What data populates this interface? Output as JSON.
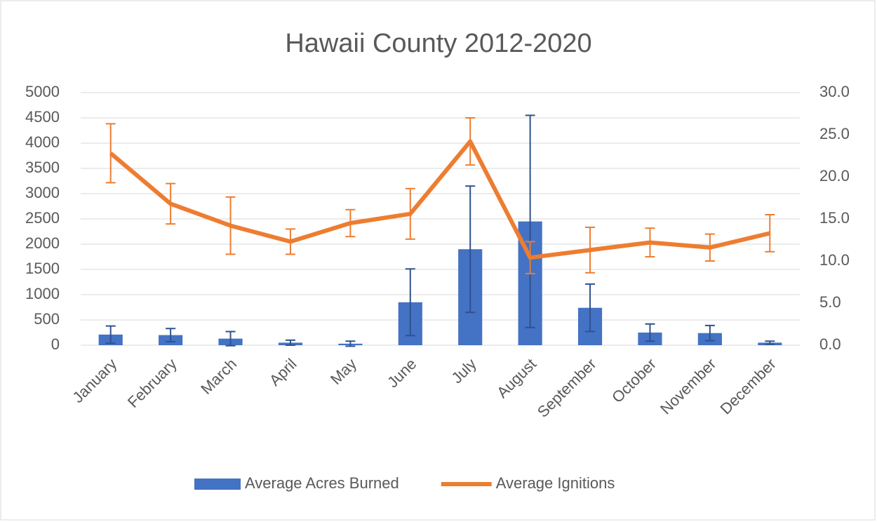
{
  "chart_data": {
    "type": "bar-line",
    "title": "Hawaii County 2012-2020",
    "categories": [
      "January",
      "February",
      "March",
      "April",
      "May",
      "June",
      "July",
      "August",
      "September",
      "October",
      "November",
      "December"
    ],
    "series": [
      {
        "name": "Average Acres Burned",
        "type": "bar",
        "color": "#4472c4",
        "error_color": "#2f528f",
        "values": [
          210,
          200,
          130,
          50,
          30,
          850,
          1900,
          2450,
          740,
          250,
          240,
          50
        ],
        "errors": [
          170,
          130,
          140,
          50,
          50,
          660,
          1250,
          2100,
          470,
          170,
          150,
          30
        ]
      },
      {
        "name": "Average Ignitions",
        "type": "line",
        "axis": "y2",
        "color": "#ed7d31",
        "error_color": "#ed7d31",
        "values": [
          22.8,
          16.8,
          14.2,
          12.3,
          14.5,
          15.6,
          24.2,
          10.4,
          11.3,
          12.2,
          11.6,
          13.3
        ],
        "errors": [
          3.5,
          2.4,
          3.4,
          1.5,
          1.6,
          3.0,
          2.8,
          1.9,
          2.7,
          1.7,
          1.6,
          2.2
        ]
      }
    ],
    "ylim": [
      0,
      5000
    ],
    "yticks": [
      0,
      500,
      1000,
      1500,
      2000,
      2500,
      3000,
      3500,
      4000,
      4500,
      5000
    ],
    "y2lim": [
      0,
      30
    ],
    "y2ticks": [
      {
        "value": 0,
        "label": "0.0"
      },
      {
        "value": 5,
        "label": "5.0"
      },
      {
        "value": 10,
        "label": "10.0"
      },
      {
        "value": 15,
        "label": "15.0"
      },
      {
        "value": 20,
        "label": "20.0"
      },
      {
        "value": 25,
        "label": "25.0"
      },
      {
        "value": 30,
        "label": "30.0"
      }
    ],
    "grid": true,
    "legend": "bottom"
  }
}
